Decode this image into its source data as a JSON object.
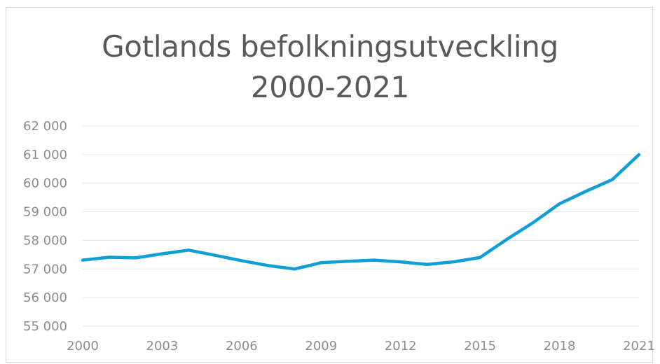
{
  "chart_data": {
    "type": "line",
    "title": "Gotlands befolkningsutveckling",
    "subtitle": "2000-2021",
    "xlabel": "",
    "ylabel": "",
    "x": [
      2000,
      2001,
      2002,
      2003,
      2004,
      2005,
      2006,
      2007,
      2008,
      2009,
      2010,
      2011,
      2012,
      2013,
      2014,
      2015,
      2016,
      2017,
      2018,
      2019,
      2020,
      2021
    ],
    "xticks": [
      2000,
      2003,
      2006,
      2009,
      2012,
      2015,
      2018,
      2021
    ],
    "ylim": [
      55000,
      62000
    ],
    "yticks": [
      55000,
      56000,
      57000,
      58000,
      59000,
      60000,
      61000,
      62000
    ],
    "ytick_labels": [
      "55 000",
      "56 000",
      "57 000",
      "58 000",
      "59 000",
      "60 000",
      "61 000",
      "62 000"
    ],
    "grid": true,
    "legend": "none",
    "series": [
      {
        "color": "#0f9ed5",
        "values": [
          57310,
          57410,
          57390,
          57530,
          57660,
          57480,
          57290,
          57120,
          57000,
          57220,
          57270,
          57310,
          57250,
          57160,
          57250,
          57400,
          58030,
          58620,
          59280,
          59720,
          60130,
          61000
        ]
      }
    ]
  }
}
